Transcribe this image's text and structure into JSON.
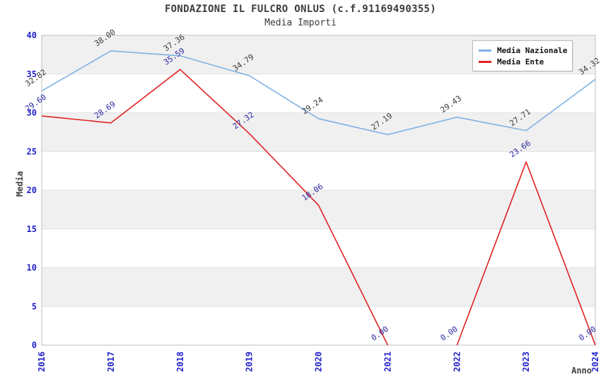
{
  "header": {
    "title": "FONDAZIONE IL FULCRO ONLUS (c.f.91169490355)",
    "subtitle": "Media Importi"
  },
  "legend": {
    "items": [
      {
        "label": "Media Nazionale",
        "color": "#7fb2e4"
      },
      {
        "label": "Media Ente",
        "color": "#e02020"
      }
    ]
  },
  "colors": {
    "blue_series": "#7fb2e4",
    "red_series": "#e02020",
    "tick_label": "#2222cc",
    "title_text": "#3b3b3b",
    "band_fill": "#f0f0f0",
    "grid_line": "#e2e2e2",
    "plot_border": "#bfbfbf",
    "blue_series_label": "#3a3a3a",
    "red_series_label": "#2a2aa0"
  },
  "chart_data": {
    "type": "line",
    "title": "FONDAZIONE IL FULCRO ONLUS (c.f.91169490355)",
    "subtitle": "Media Importi",
    "xlabel": "Anno",
    "ylabel": "Media",
    "x": [
      2016,
      2017,
      2018,
      2019,
      2020,
      2021,
      2022,
      2023,
      2024
    ],
    "series": [
      {
        "name": "Media Nazionale",
        "color": "#7fb2e4",
        "label_color": "#3a3a3a",
        "values": [
          32.82,
          38.0,
          37.36,
          34.79,
          29.24,
          27.19,
          29.43,
          27.71,
          34.32
        ],
        "draw_segments": [
          [
            0,
            8
          ]
        ]
      },
      {
        "name": "Media Ente",
        "color": "#e02020",
        "label_color": "#2a2aa0",
        "values": [
          29.6,
          28.69,
          35.59,
          27.32,
          18.06,
          0.0,
          0.0,
          23.66,
          0.0
        ],
        "draw_segments": [
          [
            0,
            5
          ],
          [
            6,
            8
          ]
        ]
      }
    ],
    "ylim": [
      0,
      40
    ],
    "yticks": [
      0,
      5,
      10,
      15,
      20,
      25,
      30,
      35,
      40
    ],
    "grid": "alternating-horizontal-bands",
    "legend_position": "top-right",
    "value_labels": "each point, 2 decimals, rotated"
  }
}
